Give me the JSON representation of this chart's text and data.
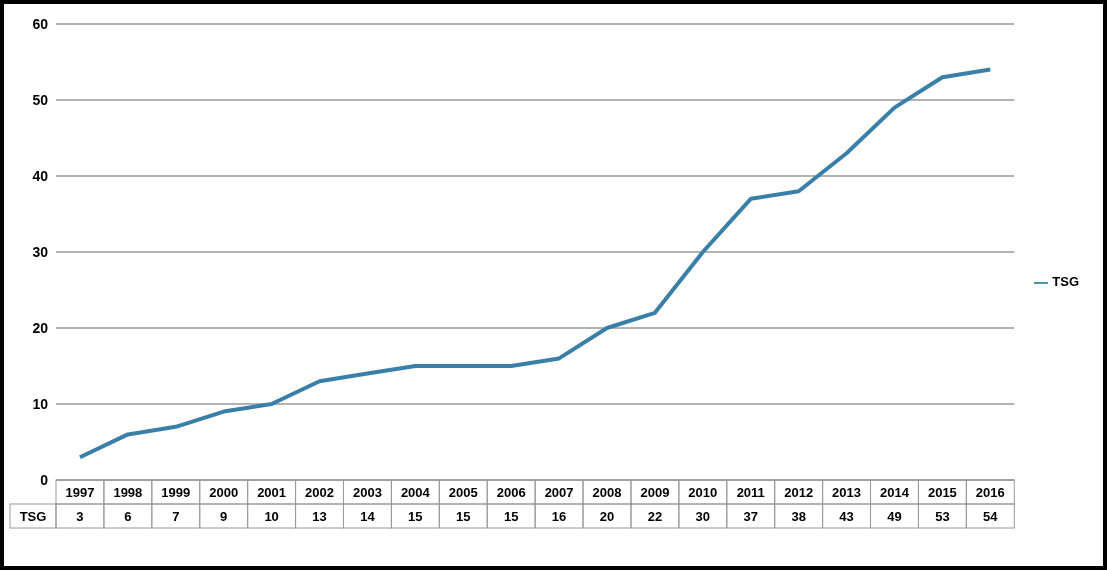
{
  "chart_data": {
    "type": "line",
    "categories": [
      "1997",
      "1998",
      "1999",
      "2000",
      "2001",
      "2002",
      "2003",
      "2004",
      "2005",
      "2006",
      "2007",
      "2008",
      "2009",
      "2010",
      "2011",
      "2012",
      "2013",
      "2014",
      "2015",
      "2016"
    ],
    "series": [
      {
        "name": "TSG",
        "color": "#3a7fa8",
        "values": [
          3,
          6,
          7,
          9,
          10,
          13,
          14,
          15,
          15,
          15,
          16,
          20,
          22,
          30,
          37,
          38,
          43,
          49,
          53,
          54
        ]
      }
    ],
    "ylim": [
      0,
      60
    ],
    "yticks": [
      0,
      10,
      20,
      30,
      40,
      50,
      60
    ],
    "grid": "y",
    "legend": "right",
    "data_labels": true
  }
}
